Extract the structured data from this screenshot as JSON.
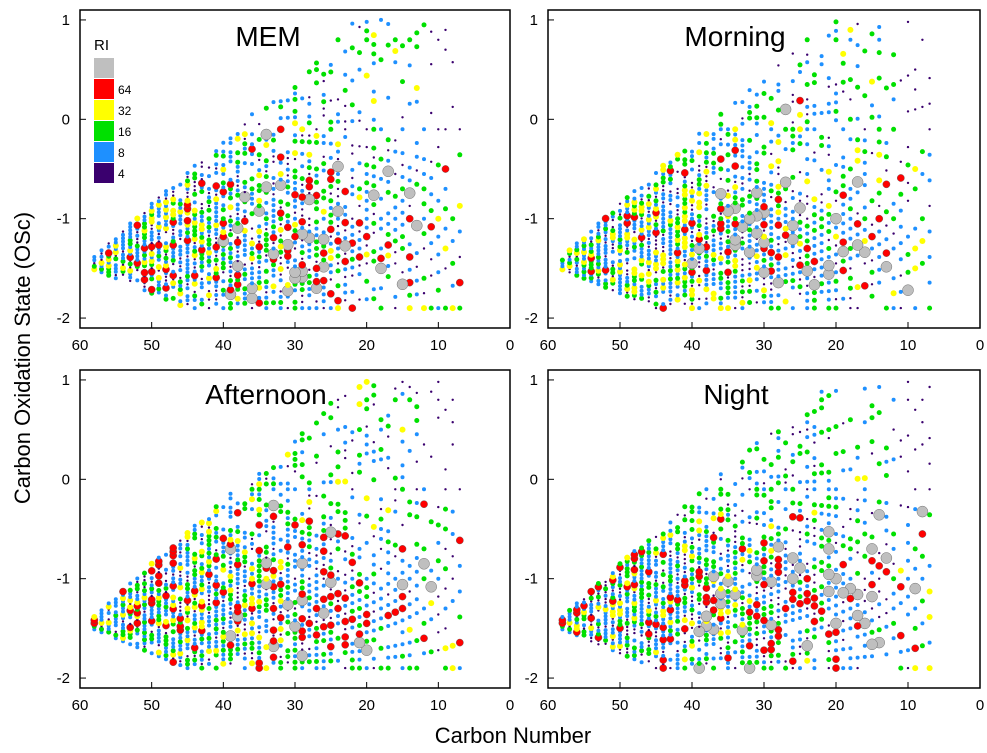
{
  "figure": {
    "ylabel": "Carbon Oxidation State (OSc)",
    "xlabel": "Carbon Number"
  },
  "legend": {
    "title": "RI",
    "entries": [
      {
        "label": "",
        "color": "#bfbfbf",
        "ri": 128
      },
      {
        "label": "64",
        "color": "#ff0000",
        "ri": 64
      },
      {
        "label": "32",
        "color": "#ffff00",
        "ri": 32
      },
      {
        "label": "16",
        "color": "#00e000",
        "ri": 16
      },
      {
        "label": "8",
        "color": "#1e90ff",
        "ri": 8
      },
      {
        "label": "4",
        "color": "#3a006e",
        "ri": 4
      }
    ]
  },
  "chart_data": [
    {
      "type": "scatter",
      "title": "MEM",
      "xlim": [
        60,
        0
      ],
      "ylim": [
        -2.1,
        1.1
      ],
      "xticks": [
        "60",
        "50",
        "40",
        "30",
        "20",
        "10",
        "0"
      ],
      "yticks": [
        "1",
        "0",
        "-1",
        "-2"
      ]
    },
    {
      "type": "scatter",
      "title": "Morning",
      "xlim": [
        60,
        0
      ],
      "ylim": [
        -2.1,
        1.1
      ],
      "xticks": [
        "60",
        "50",
        "40",
        "30",
        "20",
        "10",
        "0"
      ],
      "yticks": [
        "1",
        "0",
        "-1",
        "-2"
      ]
    },
    {
      "type": "scatter",
      "title": "Afternoon",
      "xlim": [
        60,
        0
      ],
      "ylim": [
        -2.1,
        1.1
      ],
      "xticks": [
        "60",
        "50",
        "40",
        "30",
        "20",
        "10",
        "0"
      ],
      "yticks": [
        "1",
        "0",
        "-1",
        "-2"
      ]
    },
    {
      "type": "scatter",
      "title": "Night",
      "xlim": [
        60,
        0
      ],
      "ylim": [
        -2.1,
        1.1
      ],
      "xticks": [
        "60",
        "50",
        "40",
        "30",
        "20",
        "10",
        "0"
      ],
      "yticks": [
        "1",
        "0",
        "-1",
        "-2"
      ]
    }
  ]
}
